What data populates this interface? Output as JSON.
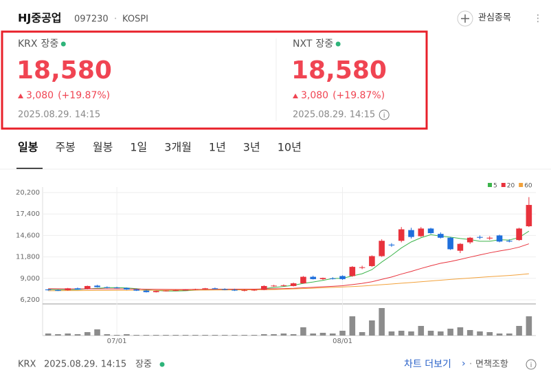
{
  "header": {
    "name": "HJ중공업",
    "code": "097230",
    "separator": "·",
    "market": "KOSPI",
    "watch": "관심종목"
  },
  "quotes": [
    {
      "market": "KRX",
      "status": "장중",
      "price": "18,580",
      "change": "3,080",
      "change_pct": "(+19.87%)",
      "time": "2025.08.29. 14:15"
    },
    {
      "market": "NXT",
      "status": "장중",
      "price": "18,580",
      "change": "3,080",
      "change_pct": "(+19.87%)",
      "time": "2025.08.29. 14:15"
    }
  ],
  "tabs": [
    "일봉",
    "주봉",
    "월봉",
    "1일",
    "3개월",
    "1년",
    "3년",
    "10년"
  ],
  "chart_data": {
    "type": "candlestick",
    "categories": [
      null,
      null,
      null,
      null,
      null,
      null,
      null,
      "07/01",
      null,
      null,
      null,
      null,
      null,
      null,
      null,
      null,
      null,
      null,
      null,
      null,
      null,
      null,
      null,
      null,
      null,
      null,
      null,
      null,
      null,
      null,
      "08/01",
      null,
      null,
      null,
      null,
      null,
      null,
      null,
      null,
      null,
      null,
      null,
      null,
      null,
      null,
      null,
      null,
      null,
      null,
      null
    ],
    "open": [
      7550,
      7450,
      7450,
      7700,
      7600,
      8050,
      7850,
      7800,
      7750,
      7550,
      7400,
      7200,
      7350,
      7400,
      7450,
      7500,
      7600,
      7700,
      7600,
      7500,
      7400,
      7450,
      7500,
      8000,
      8050,
      8000,
      8350,
      9200,
      8900,
      9000,
      9300,
      9300,
      10400,
      10600,
      11900,
      13400,
      13900,
      15300,
      14500,
      15500,
      14800,
      14300,
      12600,
      13700,
      14400,
      14200,
      14600,
      13900,
      14000,
      15800
    ],
    "high": [
      7600,
      7550,
      7750,
      7800,
      8050,
      8150,
      7950,
      7900,
      7800,
      7650,
      7500,
      7400,
      7450,
      7500,
      7600,
      7650,
      7750,
      7800,
      7700,
      7650,
      7550,
      7600,
      8100,
      8150,
      8200,
      8450,
      9300,
      9350,
      9100,
      9150,
      9400,
      10600,
      10650,
      12000,
      14100,
      13600,
      15700,
      15600,
      15700,
      15600,
      15000,
      14400,
      13600,
      14400,
      14600,
      14500,
      14700,
      14100,
      15600,
      19600
    ],
    "low": [
      7400,
      7350,
      7400,
      7500,
      7550,
      7800,
      7700,
      7700,
      7500,
      7350,
      7150,
      7150,
      7300,
      7350,
      7400,
      7450,
      7500,
      7550,
      7450,
      7350,
      7300,
      7350,
      7450,
      7900,
      7950,
      7950,
      8300,
      8850,
      8800,
      8850,
      8800,
      9200,
      10200,
      10500,
      11800,
      13100,
      13700,
      14200,
      14400,
      14800,
      14200,
      12700,
      12300,
      13500,
      14100,
      14000,
      13700,
      13700,
      13900,
      15700
    ],
    "close": [
      7450,
      7420,
      7700,
      7550,
      8000,
      7850,
      7800,
      7750,
      7550,
      7400,
      7200,
      7350,
      7400,
      7450,
      7500,
      7600,
      7700,
      7600,
      7500,
      7400,
      7450,
      7500,
      8000,
      8050,
      8100,
      8350,
      9200,
      8900,
      9050,
      8950,
      8900,
      10500,
      10450,
      11900,
      13900,
      13300,
      15400,
      14400,
      15500,
      14900,
      14300,
      12800,
      13500,
      14300,
      14300,
      14300,
      13800,
      13800,
      15500,
      18580
    ],
    "volume": [
      3,
      2,
      3,
      2,
      5,
      9,
      2,
      1,
      2,
      1,
      1,
      1,
      1,
      1,
      1,
      1,
      1,
      1,
      1,
      1,
      1,
      1,
      2,
      2,
      3,
      2,
      12,
      3,
      4,
      3,
      7,
      28,
      5,
      22,
      40,
      6,
      7,
      6,
      14,
      7,
      6,
      10,
      12,
      8,
      6,
      5,
      3,
      3,
      14,
      28
    ],
    "volume_color": "#8c8c8c",
    "up_color": "#e8323c",
    "down_color": "#1e6fdc",
    "series": [
      {
        "name": "5",
        "color": "#3cb44b",
        "values": [
          7550,
          7520,
          7520,
          7540,
          7620,
          7690,
          7780,
          7790,
          7750,
          7660,
          7520,
          7420,
          7340,
          7340,
          7380,
          7460,
          7530,
          7570,
          7580,
          7560,
          7530,
          7500,
          7670,
          7800,
          7940,
          8100,
          8340,
          8520,
          8740,
          8980,
          9000,
          9320,
          9600,
          10140,
          11130,
          12000,
          12970,
          13750,
          14300,
          14700,
          14500,
          14380,
          14200,
          14060,
          13840,
          13840,
          14040,
          14000,
          14340,
          15160
        ]
      },
      {
        "name": "20",
        "color": "#e8323c",
        "values": [
          7650,
          7640,
          7630,
          7620,
          7620,
          7620,
          7620,
          7620,
          7610,
          7600,
          7580,
          7570,
          7560,
          7550,
          7550,
          7560,
          7560,
          7570,
          7580,
          7590,
          7590,
          7590,
          7620,
          7640,
          7660,
          7700,
          7770,
          7830,
          7900,
          7960,
          8040,
          8190,
          8340,
          8560,
          8870,
          9170,
          9560,
          9900,
          10290,
          10640,
          10970,
          11190,
          11470,
          11770,
          12060,
          12330,
          12570,
          12780,
          13070,
          13510
        ]
      },
      {
        "name": "60",
        "color": "#f2a13a",
        "values": [
          7380,
          7390,
          7400,
          7400,
          7410,
          7420,
          7420,
          7430,
          7430,
          7440,
          7440,
          7450,
          7450,
          7460,
          7460,
          7470,
          7470,
          7480,
          7480,
          7490,
          7490,
          7500,
          7510,
          7540,
          7580,
          7620,
          7670,
          7720,
          7770,
          7820,
          7870,
          7930,
          8000,
          8080,
          8170,
          8260,
          8360,
          8460,
          8560,
          8660,
          8760,
          8860,
          8950,
          9040,
          9130,
          9220,
          9300,
          9380,
          9480,
          9600
        ]
      }
    ],
    "ylim": [
      6200,
      20200
    ],
    "yticks": [
      {
        "value": 6200,
        "label": "6,200"
      },
      {
        "value": 9000,
        "label": "9,000"
      },
      {
        "value": 11800,
        "label": "11,800"
      },
      {
        "value": 14600,
        "label": "14,600"
      },
      {
        "value": 17400,
        "label": "17,400"
      },
      {
        "value": 20200,
        "label": "20,200"
      }
    ],
    "grid": true
  },
  "footer": {
    "market": "KRX",
    "time": "2025.08.29. 14:15",
    "status": "장중",
    "more": "차트 더보기",
    "arrow": "›",
    "separator": "·",
    "disclaimer": "면책조항"
  }
}
